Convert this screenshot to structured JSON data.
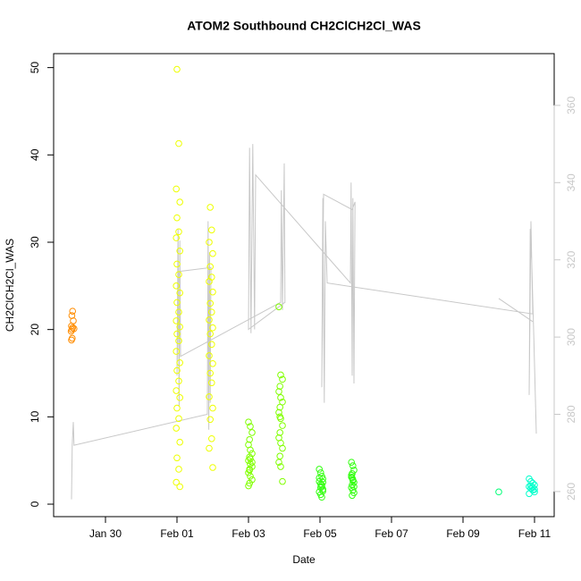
{
  "chart_data": {
    "type": "scatter",
    "title": "ATOM2 Southbound CH2ClCH2Cl_WAS",
    "x_label": "Date",
    "y_label": "CH2ClCH2Cl_WAS",
    "xlim": [
      28.55,
      42.55
    ],
    "ylim": [
      -1.43,
      51.6
    ],
    "y2lim": [
      253.5,
      373.4
    ],
    "xticks": [
      {
        "value": 30,
        "label": "Jan 30"
      },
      {
        "value": 32,
        "label": "Feb 01"
      },
      {
        "value": 34,
        "label": "Feb 03"
      },
      {
        "value": 36,
        "label": "Feb 05"
      },
      {
        "value": 38,
        "label": "Feb 07"
      },
      {
        "value": 40,
        "label": "Feb 09"
      },
      {
        "value": 42,
        "label": "Feb 11"
      }
    ],
    "yticks": [
      0,
      10,
      20,
      30,
      40,
      50
    ],
    "y2ticks": [
      260,
      280,
      300,
      320,
      340,
      360
    ],
    "y2color": "#c8c8c8",
    "series": [
      {
        "color": "#ff8c00",
        "x": [
          29.05,
          29.07,
          29.04,
          29.06,
          29.08,
          29.05,
          29.1,
          29.06,
          29.08,
          29.12
        ],
        "values": [
          18.8,
          19.0,
          19.8,
          20.0,
          20.2,
          20.4,
          21.0,
          21.6,
          22.1,
          20.1
        ]
      },
      {
        "color": "#eeff00",
        "x": [
          32.0,
          32.05,
          31.98,
          32.08,
          32.0,
          32.05,
          31.98,
          32.08,
          32.0,
          32.05,
          31.98,
          32.08,
          32.0,
          32.05,
          31.98,
          32.08,
          32.0,
          32.05,
          31.98,
          32.08,
          32.0,
          32.05,
          31.98,
          32.08,
          32.0,
          32.05,
          31.98,
          32.08,
          32.0,
          32.05,
          31.98,
          32.08,
          32.93,
          32.97,
          32.9,
          33.0,
          32.93,
          32.97,
          32.9,
          33.0,
          32.93,
          32.97,
          32.9,
          33.0,
          32.93,
          32.97,
          32.9,
          33.0,
          32.93,
          32.97,
          32.9,
          33.0,
          32.93,
          32.97,
          32.9,
          33.0
        ],
        "values": [
          49.8,
          41.3,
          36.1,
          34.6,
          32.8,
          31.2,
          30.5,
          29.0,
          27.5,
          26.3,
          25.0,
          24.2,
          23.1,
          22.0,
          21.0,
          20.3,
          19.5,
          18.7,
          17.5,
          16.2,
          15.3,
          14.1,
          13.0,
          12.2,
          11.0,
          9.8,
          8.7,
          7.1,
          5.3,
          4.0,
          2.5,
          2.0,
          34.0,
          31.4,
          30.0,
          28.7,
          27.2,
          26.0,
          25.5,
          24.3,
          23.0,
          22.0,
          21.1,
          20.2,
          19.5,
          18.3,
          17.0,
          16.1,
          15.0,
          13.9,
          12.3,
          11.0,
          9.7,
          7.5,
          6.4,
          4.2
        ]
      },
      {
        "color": "#80ff00",
        "x": [
          34.0,
          34.05,
          34.1,
          34.03,
          34.0,
          34.05,
          34.1,
          34.03,
          34.0,
          34.05,
          34.1,
          34.03,
          34.0,
          34.05,
          34.1,
          34.03,
          34.0,
          34.05,
          34.1,
          34.03,
          34.85,
          34.9,
          34.95,
          34.88,
          34.85,
          34.9,
          34.95,
          34.88,
          34.85,
          34.9,
          34.95,
          34.88,
          34.85,
          34.9,
          34.95,
          34.88,
          34.85,
          34.9,
          34.95,
          34.88
        ],
        "values": [
          9.4,
          8.9,
          8.2,
          7.4,
          6.8,
          6.2,
          5.8,
          5.4,
          5.0,
          4.6,
          4.3,
          4.0,
          3.6,
          3.2,
          2.8,
          2.4,
          2.1,
          5.2,
          4.8,
          3.9,
          22.6,
          14.8,
          14.3,
          13.5,
          12.9,
          12.2,
          11.7,
          11.1,
          10.5,
          9.8,
          9.0,
          8.2,
          7.6,
          7.0,
          6.4,
          5.5,
          4.8,
          4.3,
          2.6,
          10.0
        ]
      },
      {
        "color": "#33ff11",
        "x": [
          35.98,
          36.02,
          36.05,
          36.08,
          35.98,
          36.02,
          36.05,
          36.08,
          35.98,
          36.02,
          36.05,
          36.08,
          35.98,
          36.02,
          36.05,
          36.08,
          36.88,
          36.92,
          36.95,
          36.9,
          36.88,
          36.92,
          36.95,
          36.9,
          36.88,
          36.92,
          36.95,
          36.9,
          36.88,
          36.92,
          36.95,
          36.9
        ],
        "values": [
          4.0,
          3.6,
          3.2,
          2.9,
          2.6,
          2.3,
          2.0,
          1.7,
          1.4,
          1.1,
          0.8,
          2.5,
          3.0,
          1.9,
          2.2,
          1.5,
          4.8,
          4.4,
          3.9,
          3.5,
          3.1,
          2.8,
          2.5,
          2.2,
          1.9,
          1.6,
          1.3,
          1.0,
          3.3,
          2.7,
          2.0,
          3.0
        ]
      },
      {
        "color": "#00ff77",
        "x": [
          41.0
        ],
        "values": [
          1.4
        ]
      },
      {
        "color": "#00ffcc",
        "x": [
          41.85,
          41.9,
          41.95,
          42.0,
          41.85,
          41.9,
          41.95,
          42.0,
          41.85,
          41.9,
          41.95,
          42.0
        ],
        "values": [
          2.9,
          2.6,
          2.4,
          2.2,
          2.0,
          1.8,
          1.6,
          1.4,
          1.2,
          2.1,
          1.9,
          1.7
        ]
      },
      {
        "type": "line",
        "axis": "y2",
        "color": "#c8c8c8",
        "x": [
          29.05,
          29.07,
          29.1,
          29.12,
          32.85,
          32.87,
          32.89,
          32.91,
          32.93,
          32.95,
          32.05,
          32.0,
          32.03,
          32.06,
          32.08,
          32.1,
          34.9,
          34.92,
          34.95,
          35.0,
          35.02,
          34.0,
          34.03,
          34.07,
          34.12,
          34.17,
          34.2,
          36.85,
          36.87,
          36.9,
          36.92,
          36.95,
          36.98,
          36.9,
          36.1,
          36.05,
          36.08,
          36.12,
          36.15,
          36.2,
          41.95,
          41.9,
          41.85,
          41.88,
          41.92,
          41.98,
          42.05,
          null,
          41.0,
          41.95
        ],
        "values": [
          258,
          272,
          278,
          272,
          280,
          330,
          276,
          322,
          283,
          318,
          317,
          290,
          328,
          282,
          325,
          295,
          309,
          338,
          307,
          345,
          309,
          302,
          349,
          301,
          350,
          302,
          342,
          314,
          340,
          290,
          336,
          288,
          335,
          333,
          337,
          287,
          336,
          283,
          330,
          314,
          306,
          330,
          285,
          328,
          320,
          300,
          275,
          null,
          310,
          304
        ]
      }
    ]
  }
}
